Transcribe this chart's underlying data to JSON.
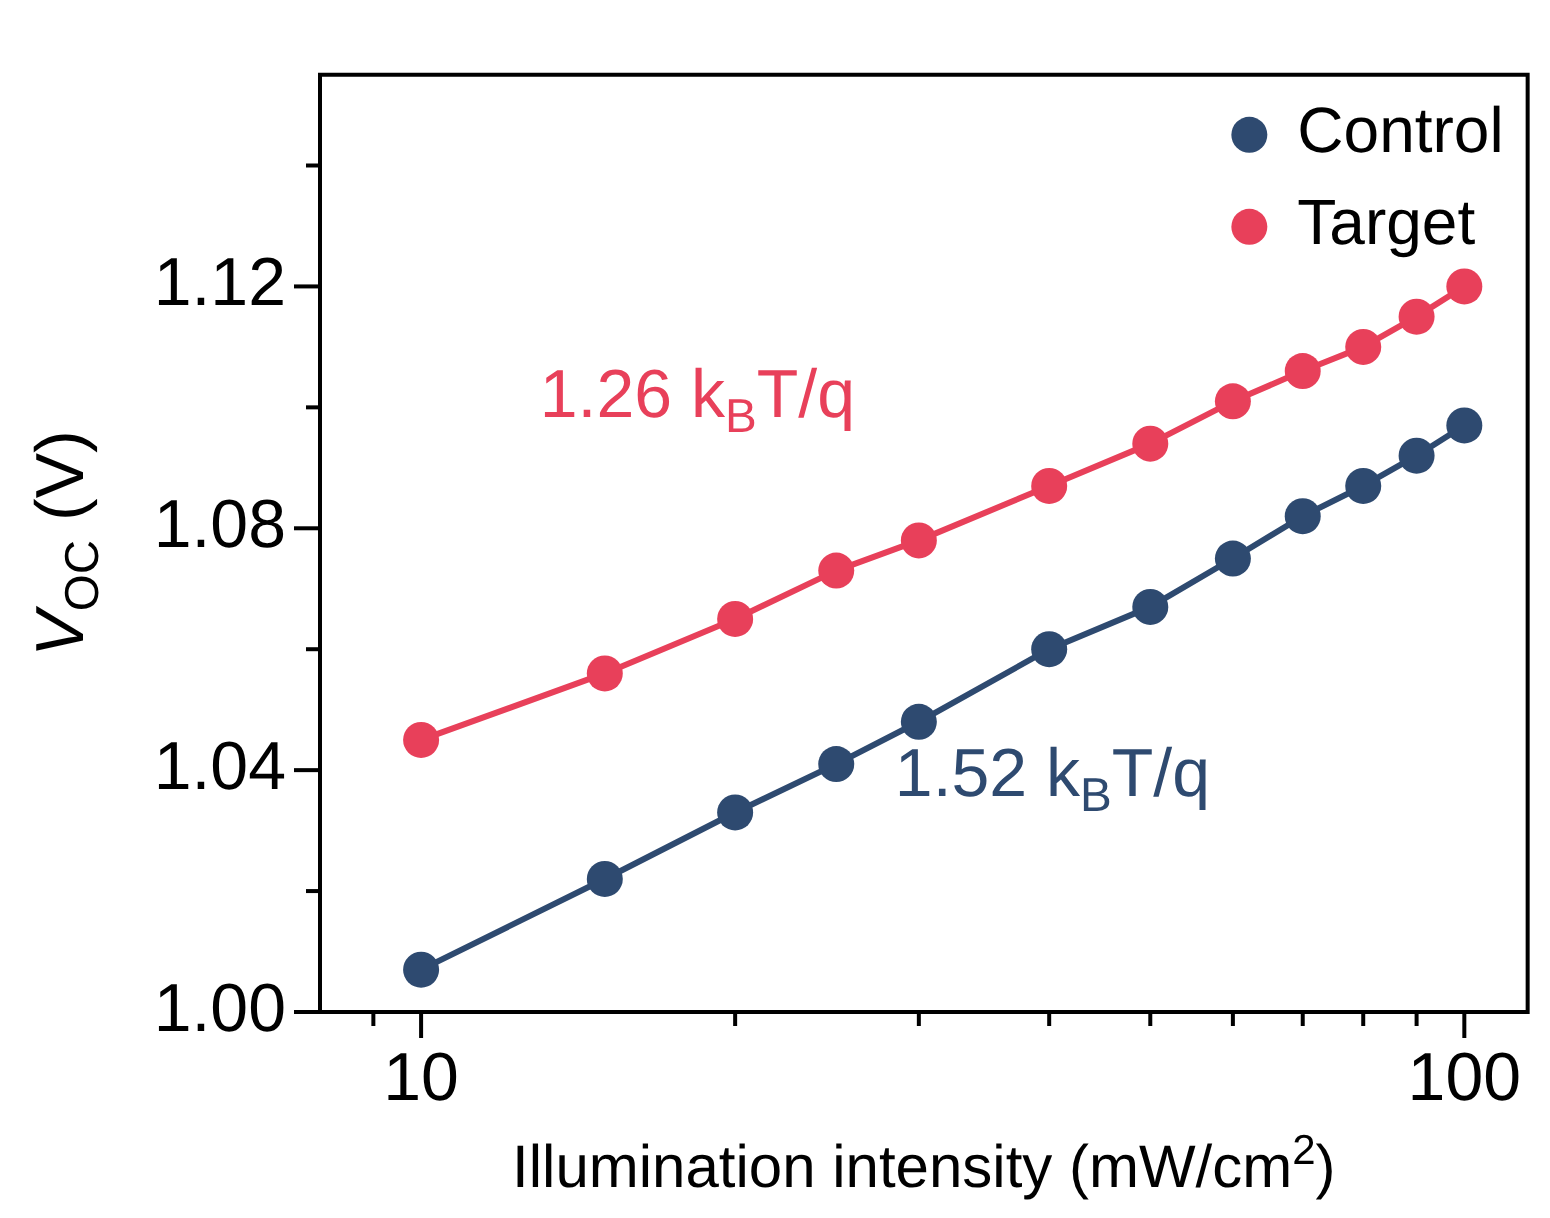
{
  "chart_data": {
    "type": "line",
    "xlabel": "Illumination intensity (mW/cm$^{2}$)",
    "ylabel": "V$_{OC}$ (V)",
    "x": [
      10,
      15,
      20,
      25,
      30,
      40,
      50,
      60,
      70,
      80,
      90,
      100
    ],
    "series": [
      {
        "name": "Control",
        "color": "#2e4a70",
        "values": [
          1.007,
          1.022,
          1.033,
          1.041,
          1.048,
          1.06,
          1.067,
          1.075,
          1.082,
          1.087,
          1.092,
          1.097
        ]
      },
      {
        "name": "Target",
        "color": "#e8405a",
        "values": [
          1.045,
          1.056,
          1.065,
          1.073,
          1.078,
          1.087,
          1.094,
          1.101,
          1.106,
          1.11,
          1.115,
          1.12
        ]
      }
    ],
    "log": "x",
    "xlim": [
      8,
      115
    ],
    "xticks": [
      {
        "value": 9,
        "label": null
      },
      10,
      {
        "value": 20,
        "label": null
      },
      {
        "value": 30,
        "label": null
      },
      {
        "value": 40,
        "label": null
      },
      {
        "value": 50,
        "label": null
      },
      {
        "value": 60,
        "label": null
      },
      {
        "value": 70,
        "label": null
      },
      {
        "value": 80,
        "label": null
      },
      {
        "value": 90,
        "label": null
      },
      100
    ],
    "ylim": [
      1.0,
      1.155
    ],
    "yticks": [
      {
        "value": 1.0,
        "label": "1.00"
      },
      {
        "value": 1.02,
        "label": null
      },
      {
        "value": 1.04,
        "label": "1.04"
      },
      {
        "value": 1.06,
        "label": null
      },
      {
        "value": 1.08,
        "label": "1.08"
      },
      {
        "value": 1.1,
        "label": null
      },
      {
        "value": 1.12,
        "label": "1.12"
      },
      {
        "value": 1.14,
        "label": null
      }
    ],
    "annotations": [
      "1.52 k$_{B}$T/q",
      "1.26 k$_{B}$T/q"
    ],
    "marker": "circle",
    "line_style": "solid",
    "legend": "top right",
    "grid": false
  }
}
